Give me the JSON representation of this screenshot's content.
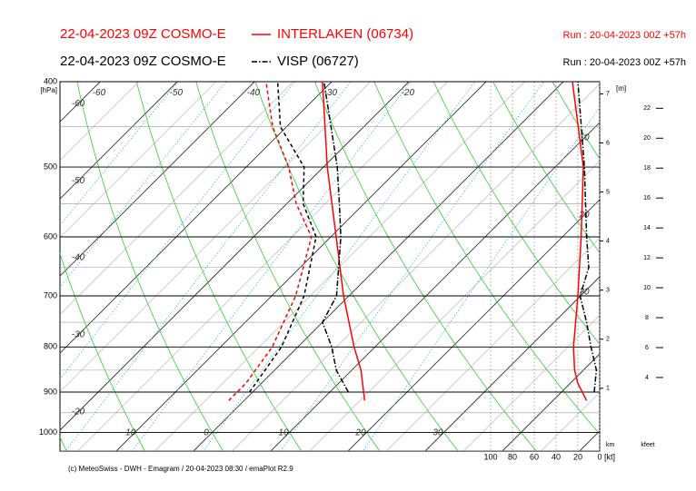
{
  "chart_data": {
    "type": "emagram",
    "footer": "(c) MeteoSwiss - DWH - Emagram / 20-04-2023 08:30 / emaPlot R2.9",
    "y_label": "[hPa]",
    "ylim": [
      1050,
      400
    ],
    "yticks": [
      400,
      500,
      600,
      700,
      800,
      900,
      1000
    ],
    "xlim": [
      -17.3,
      52.6
    ],
    "isotherm_top_labels": [
      -60,
      -50,
      -40,
      -30,
      -20
    ],
    "isotherm_edge_labels": [
      -60,
      -50,
      -40,
      -30,
      -20,
      -10,
      0,
      10,
      20,
      30
    ],
    "right_labels": [
      10,
      20,
      30
    ],
    "wind_xlim": [
      100,
      0
    ],
    "wind_xticks": [
      100,
      80,
      60,
      40,
      20,
      0
    ],
    "wind_unit": "[kt]",
    "height_label": "[m]",
    "height_km_label": "km",
    "height_km_ticks": [
      1,
      2,
      3,
      4,
      5,
      6,
      7
    ],
    "height_kfeet_label": "kfeet",
    "height_kfeet_ticks": [
      4,
      6,
      8,
      10,
      12,
      14,
      16,
      18,
      20,
      22
    ],
    "series": [
      {
        "name": "INTERLAKEN (06734)",
        "model": "22-04-2023 09Z COSMO-E",
        "run": "Run : 20-04-2023 00Z +57h",
        "color": "#ff0000",
        "temp_p": [
          920,
          850,
          800,
          700,
          600,
          500,
          400
        ],
        "temp": [
          15.6,
          11.2,
          7.3,
          -0.7,
          -9.3,
          -19.5,
          -31.2
        ],
        "dew_p": [
          920,
          880,
          800,
          700,
          600,
          550,
          500,
          450,
          400
        ],
        "dew": [
          -2,
          -2,
          -3.3,
          -6.9,
          -12.5,
          -18.8,
          -24.5,
          -31.8,
          -38.5
        ],
        "wind_p": [
          920,
          880,
          850,
          800,
          700,
          600,
          500,
          400
        ],
        "wind": [
          12,
          20,
          23,
          24,
          20,
          17,
          15,
          25
        ]
      },
      {
        "name": "VISP (06727)",
        "model": "22-04-2023 09Z COSMO-E",
        "run": "Run : 20-04-2023 00Z +57h",
        "color": "#000000",
        "temp_p": [
          900,
          850,
          800,
          750,
          700,
          600,
          550,
          500,
          400
        ],
        "temp": [
          12.4,
          8,
          4.4,
          0,
          -1.6,
          -8.7,
          -13.2,
          -18.2,
          -31
        ],
        "dew_p": [
          900,
          800,
          700,
          600,
          550,
          500,
          450,
          400
        ],
        "dew": [
          -0.4,
          -2.1,
          -5.8,
          -11.9,
          -17.9,
          -22.5,
          -30.8,
          -37
        ],
        "wind_p": [
          900,
          850,
          800,
          750,
          700,
          650,
          600,
          500,
          400
        ],
        "wind": [
          5,
          3,
          8,
          12,
          18,
          10,
          12,
          14,
          20
        ]
      }
    ]
  }
}
